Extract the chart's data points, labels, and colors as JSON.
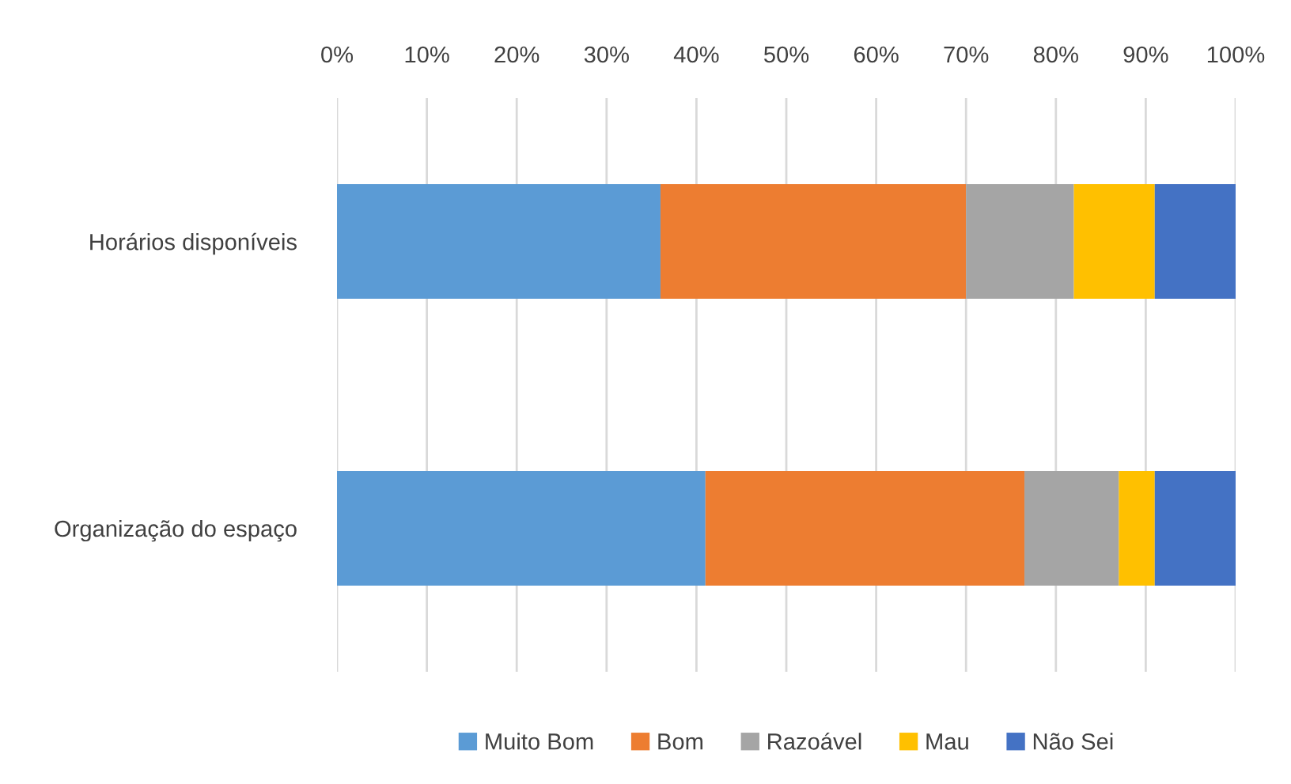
{
  "chart_data": {
    "type": "bar",
    "orientation": "horizontal",
    "stacked": true,
    "categories": [
      "Horários disponíveis",
      "Organização do espaço"
    ],
    "series": [
      {
        "name": "Muito Bom",
        "color": "#5b9bd5",
        "values": [
          36,
          41
        ]
      },
      {
        "name": "Bom",
        "color": "#ed7d31",
        "values": [
          34,
          35.5
        ]
      },
      {
        "name": "Razoável",
        "color": "#a5a5a5",
        "values": [
          12,
          10.5
        ]
      },
      {
        "name": "Mau",
        "color": "#ffc000",
        "values": [
          9,
          4
        ]
      },
      {
        "name": "Não Sei",
        "color": "#4472c4",
        "values": [
          9,
          9
        ]
      }
    ],
    "xlim": [
      0,
      100
    ],
    "xticks": [
      {
        "value": 0,
        "label": "0%"
      },
      {
        "value": 10,
        "label": "10%"
      },
      {
        "value": 20,
        "label": "20%"
      },
      {
        "value": 30,
        "label": "30%"
      },
      {
        "value": 40,
        "label": "40%"
      },
      {
        "value": 50,
        "label": "50%"
      },
      {
        "value": 60,
        "label": "60%"
      },
      {
        "value": 70,
        "label": "70%"
      },
      {
        "value": 80,
        "label": "80%"
      },
      {
        "value": 90,
        "label": "90%"
      },
      {
        "value": 100,
        "label": "100%"
      }
    ],
    "grid": "x",
    "legend": "bottom"
  }
}
